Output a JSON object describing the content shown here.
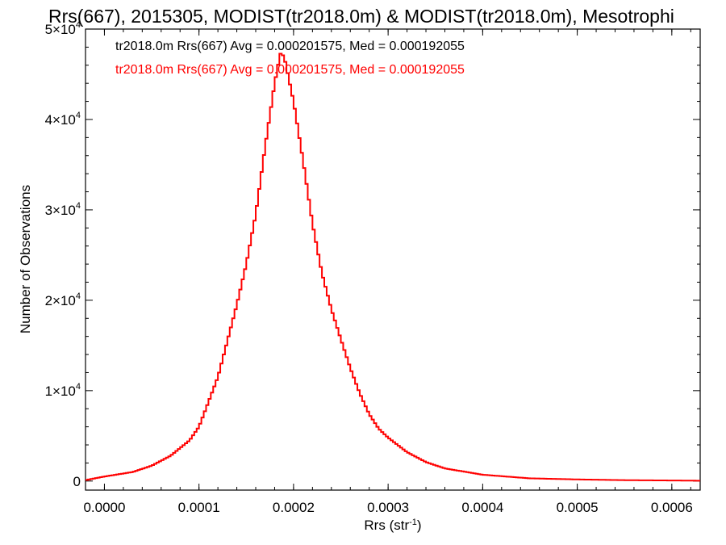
{
  "chart_data": {
    "type": "line",
    "title": "Rrs(667), 2015305, MODIST(tr2018.0m) & MODIST(tr2018.0m), Mesotrophi",
    "xlabel_main": "Rrs (str",
    "xlabel_sup": "-1",
    "xlabel_close": ")",
    "ylabel": "Number of Observations",
    "xlim": [
      -2e-05,
      0.00063
    ],
    "ylim": [
      -1000,
      50000
    ],
    "x_ticks": [
      "0.0000",
      "0.0001",
      "0.0002",
      "0.0003",
      "0.0004",
      "0.0005",
      "0.0006"
    ],
    "x_tick_values": [
      0,
      0.0001,
      0.0002,
      0.0003,
      0.0004,
      0.0005,
      0.0006
    ],
    "y_ticks": [
      {
        "value": 0,
        "mant": "0",
        "exp": ""
      },
      {
        "value": 10000,
        "mant": "1×10",
        "exp": "4"
      },
      {
        "value": 20000,
        "mant": "2×10",
        "exp": "4"
      },
      {
        "value": 30000,
        "mant": "3×10",
        "exp": "4"
      },
      {
        "value": 40000,
        "mant": "4×10",
        "exp": "4"
      },
      {
        "value": 50000,
        "mant": "5×10",
        "exp": "4"
      }
    ],
    "legend": [
      {
        "text": "tr2018.0m Rrs(667) Avg = 0.000201575, Med = 0.000192055",
        "color": "#000000"
      },
      {
        "text": "tr2018.0m Rrs(667) Avg = 0.000201575, Med = 0.000192055",
        "color": "#ff0000"
      }
    ],
    "series": [
      {
        "color": "#ff0000",
        "style": "step",
        "points": [
          [
            -2e-05,
            100
          ],
          [
            0.0,
            500
          ],
          [
            3e-05,
            1000
          ],
          [
            5e-05,
            1700
          ],
          [
            7e-05,
            2800
          ],
          [
            9e-05,
            4500
          ],
          [
            0.0001,
            6000
          ],
          [
            0.00012,
            11500
          ],
          [
            0.00014,
            19500
          ],
          [
            0.00015,
            24000
          ],
          [
            0.00016,
            29500
          ],
          [
            0.00017,
            37000
          ],
          [
            0.00018,
            44000
          ],
          [
            0.000186,
            47300
          ],
          [
            0.00019,
            47000
          ],
          [
            0.0002,
            42000
          ],
          [
            0.00021,
            35500
          ],
          [
            0.00022,
            28500
          ],
          [
            0.00023,
            23000
          ],
          [
            0.00024,
            19000
          ],
          [
            0.00025,
            15700
          ],
          [
            0.00026,
            12500
          ],
          [
            0.00027,
            9700
          ],
          [
            0.00028,
            7400
          ],
          [
            0.00029,
            5800
          ],
          [
            0.0003,
            4800
          ],
          [
            0.00032,
            3200
          ],
          [
            0.00034,
            2100
          ],
          [
            0.00036,
            1400
          ],
          [
            0.0004,
            700
          ],
          [
            0.00045,
            300
          ],
          [
            0.0005,
            180
          ],
          [
            0.00055,
            100
          ],
          [
            0.00063,
            40
          ]
        ]
      }
    ]
  }
}
